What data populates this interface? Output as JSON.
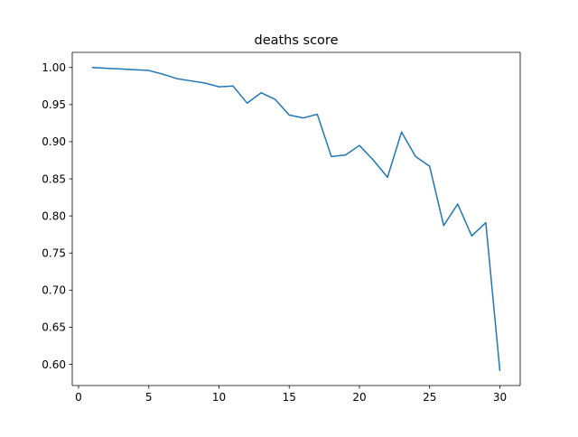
{
  "chart_data": {
    "type": "line",
    "title": "deaths score",
    "xlabel": "",
    "ylabel": "",
    "xlim": [
      -0.45,
      31.45
    ],
    "ylim": [
      0.5714,
      1.0204
    ],
    "xticks": [
      0,
      5,
      10,
      15,
      20,
      25,
      30
    ],
    "yticks": [
      0.6,
      0.65,
      0.7,
      0.75,
      0.8,
      0.85,
      0.9,
      0.95,
      1.0
    ],
    "xtick_labels": [
      "0",
      "5",
      "10",
      "15",
      "20",
      "25",
      "30"
    ],
    "ytick_labels": [
      "0.60",
      "0.65",
      "0.70",
      "0.75",
      "0.80",
      "0.85",
      "0.90",
      "0.95",
      "1.00"
    ],
    "grid": false,
    "series": [
      {
        "color": "#1f77b4",
        "x": [
          1,
          2,
          3,
          4,
          5,
          6,
          7,
          8,
          9,
          10,
          11,
          12,
          13,
          14,
          15,
          16,
          17,
          18,
          19,
          20,
          21,
          22,
          23,
          24,
          25,
          26,
          27,
          28,
          29,
          30
        ],
        "values": [
          1.0,
          0.999,
          0.998,
          0.997,
          0.996,
          0.991,
          0.985,
          0.982,
          0.979,
          0.974,
          0.975,
          0.952,
          0.966,
          0.957,
          0.936,
          0.932,
          0.937,
          0.88,
          0.882,
          0.895,
          0.875,
          0.852,
          0.913,
          0.88,
          0.867,
          0.787,
          0.816,
          0.773,
          0.791,
          0.592
        ]
      }
    ]
  }
}
